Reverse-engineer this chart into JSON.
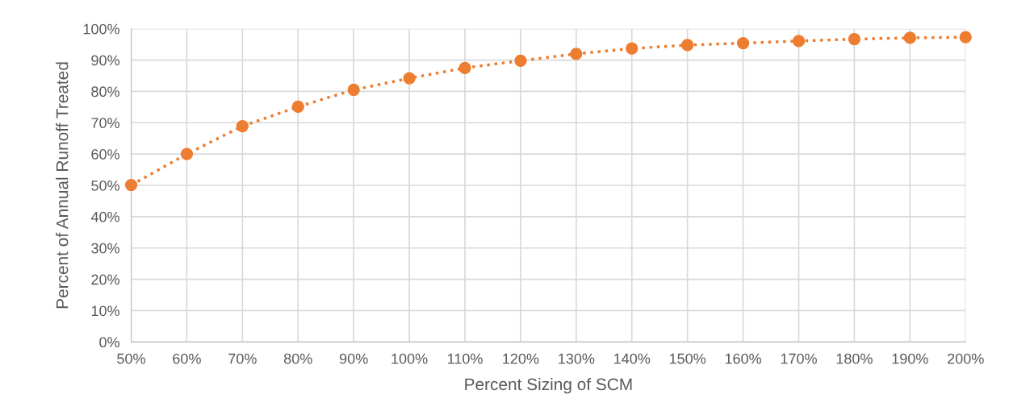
{
  "chart_data": {
    "type": "line",
    "xlabel": "Percent Sizing of SCM",
    "ylabel": "Percent of Annual Runoff Treated",
    "categories": [
      "50%",
      "60%",
      "70%",
      "80%",
      "90%",
      "100%",
      "110%",
      "120%",
      "130%",
      "140%",
      "150%",
      "160%",
      "170%",
      "180%",
      "190%",
      "200%"
    ],
    "series": [
      {
        "color": "#ed7d31",
        "values": [
          50.1,
          60.0,
          68.9,
          75.1,
          80.5,
          84.2,
          87.5,
          89.8,
          92.0,
          93.7,
          94.8,
          95.4,
          96.1,
          96.7,
          97.1,
          97.3
        ]
      }
    ],
    "ylim": [
      0,
      100
    ],
    "yticks": [
      {
        "value": 0,
        "label": "0%"
      },
      {
        "value": 10,
        "label": "10%"
      },
      {
        "value": 20,
        "label": "20%"
      },
      {
        "value": 30,
        "label": "30%"
      },
      {
        "value": 40,
        "label": "40%"
      },
      {
        "value": 50,
        "label": "50%"
      },
      {
        "value": 60,
        "label": "60%"
      },
      {
        "value": 70,
        "label": "70%"
      },
      {
        "value": 80,
        "label": "80%"
      },
      {
        "value": 90,
        "label": "90%"
      },
      {
        "value": 100,
        "label": "100%"
      }
    ],
    "grid": true,
    "marker": "circle",
    "line_style": "dotted"
  }
}
